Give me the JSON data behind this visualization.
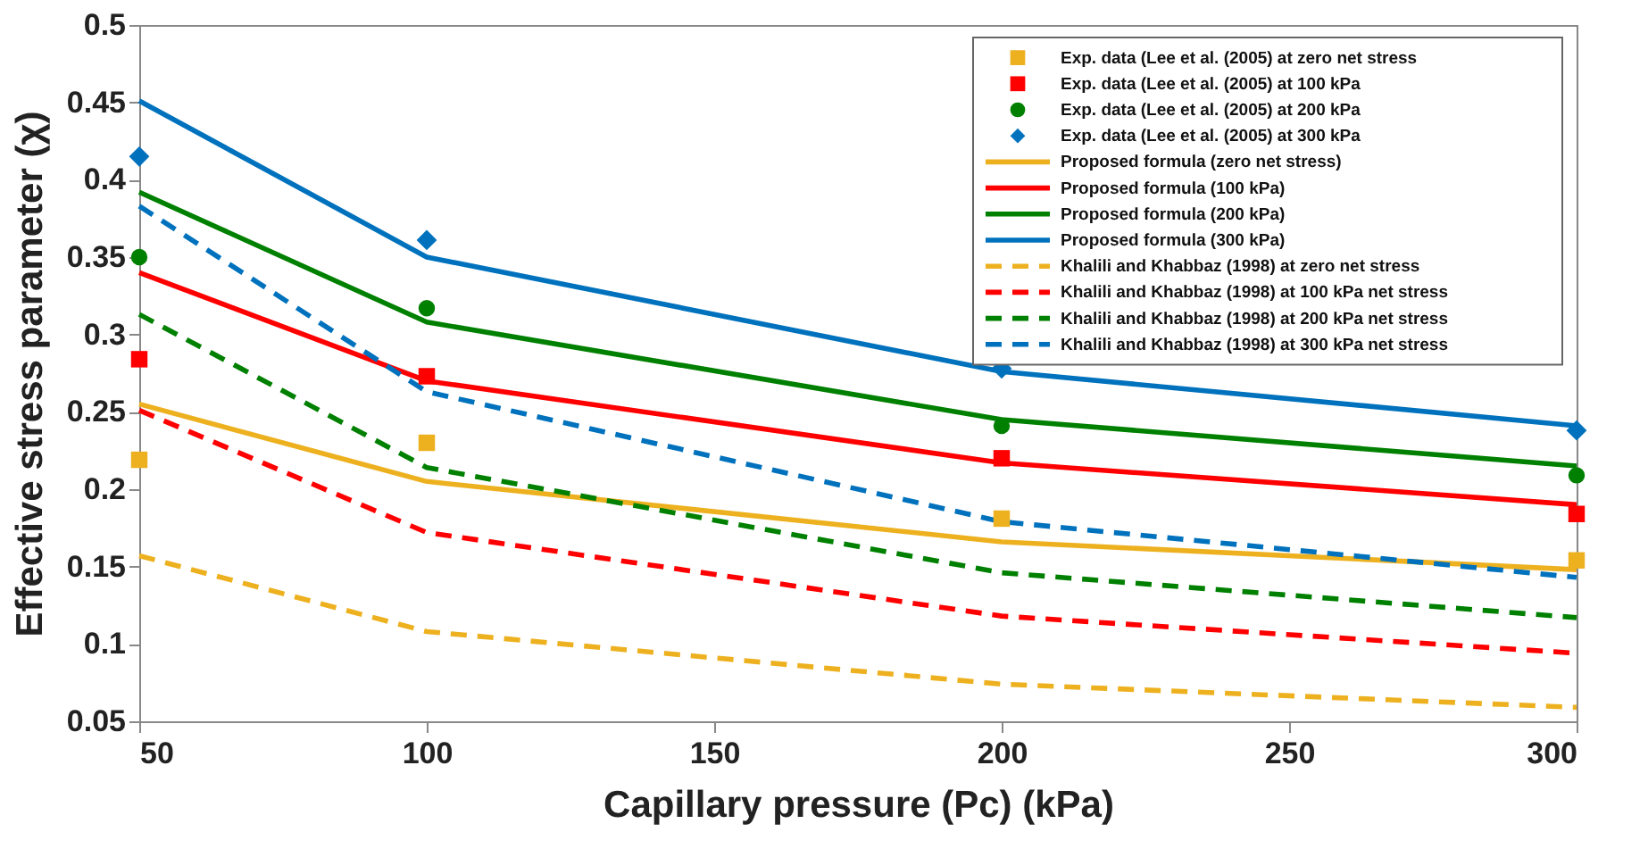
{
  "chart_data": {
    "type": "line",
    "xlabel": "Capillary pressure (Pc) (kPa)",
    "ylabel": "Effective stress parameter (χ)",
    "x": [
      50,
      100,
      200,
      300
    ],
    "xlim": [
      50,
      300
    ],
    "xticks": [
      50,
      100,
      150,
      200,
      250,
      300
    ],
    "ylim": [
      0.05,
      0.5
    ],
    "yticks": [
      0.05,
      0.1,
      0.15,
      0.2,
      0.25,
      0.3,
      0.35,
      0.4,
      0.45,
      0.5
    ],
    "grid": false,
    "legend": "top right",
    "series": [
      {
        "name": "Exp. data (Lee et al. (2005) at zero net stress",
        "type": "scatter",
        "marker": "square",
        "color": "#edb120",
        "values": [
          0.219,
          0.23,
          0.181,
          0.154
        ]
      },
      {
        "name": "Exp. data (Lee et al. (2005) at 100 kPa",
        "type": "scatter",
        "marker": "square",
        "color": "#ff0000",
        "values": [
          0.284,
          0.273,
          0.22,
          0.184
        ]
      },
      {
        "name": "Exp. data (Lee et al. (2005) at 200 kPa",
        "type": "scatter",
        "marker": "circle",
        "color": "#008000",
        "values": [
          0.35,
          0.317,
          0.241,
          0.209
        ]
      },
      {
        "name": "Exp. data (Lee et al. (2005) at 300 kPa",
        "type": "scatter",
        "marker": "diamond",
        "color": "#0072bd",
        "values": [
          0.415,
          0.361,
          0.278,
          0.238
        ]
      },
      {
        "name": "Proposed formula (zero net stress)",
        "line_style": "solid",
        "color": "#edb120",
        "values": [
          0.255,
          0.205,
          0.166,
          0.148
        ]
      },
      {
        "name": "Proposed formula (100 kPa)",
        "line_style": "solid",
        "color": "#ff0000",
        "values": [
          0.34,
          0.27,
          0.217,
          0.19
        ]
      },
      {
        "name": "Proposed formula (200 kPa)",
        "line_style": "solid",
        "color": "#008000",
        "values": [
          0.392,
          0.308,
          0.245,
          0.215
        ]
      },
      {
        "name": "Proposed formula (300 kPa)",
        "line_style": "solid",
        "color": "#0072bd",
        "values": [
          0.451,
          0.35,
          0.276,
          0.241
        ]
      },
      {
        "name": "Khalili and Khabbaz (1998) at zero net stress",
        "line_style": "dashed",
        "color": "#edb120",
        "values": [
          0.157,
          0.108,
          0.074,
          0.059
        ]
      },
      {
        "name": "Khalili and Khabbaz (1998) at 100 kPa net stress",
        "line_style": "dashed",
        "color": "#ff0000",
        "values": [
          0.251,
          0.172,
          0.118,
          0.094
        ]
      },
      {
        "name": "Khalili and Khabbaz (1998) at 200 kPa net stress",
        "line_style": "dashed",
        "color": "#008000",
        "values": [
          0.313,
          0.214,
          0.146,
          0.117
        ]
      },
      {
        "name": "Khalili and Khabbaz (1998) at 300 kPa net stress",
        "line_style": "dashed",
        "color": "#0072bd",
        "values": [
          0.383,
          0.263,
          0.179,
          0.143
        ]
      }
    ]
  }
}
